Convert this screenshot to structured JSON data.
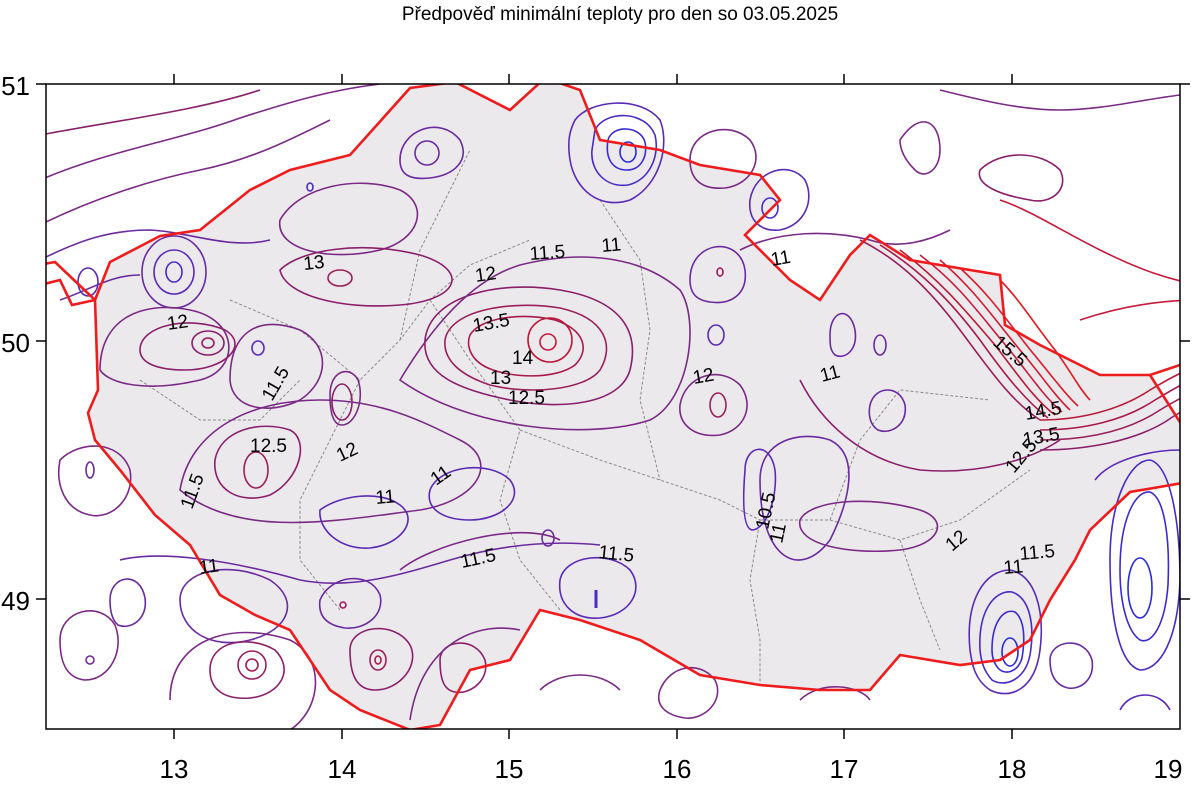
{
  "title": "Předpověď minimální teploty pro den so 03.05.2025",
  "x_axis": {
    "ticks": [
      "13",
      "14",
      "15",
      "16",
      "17",
      "18",
      "19"
    ]
  },
  "y_axis": {
    "ticks": [
      "51",
      "50",
      "49"
    ]
  },
  "contour_labels": [
    "11.5",
    "11",
    "12",
    "13",
    "13.5",
    "14",
    "13",
    "12.5",
    "12",
    "11.5",
    "12.5",
    "12",
    "11",
    "11",
    "11.5",
    "11.5",
    "11.5",
    "11",
    "11",
    "12",
    "11",
    "10.5",
    "11",
    "12",
    "11",
    "11.5",
    "12.5",
    "13.5",
    "14.5",
    "15.5"
  ],
  "colors": {
    "border": "#ee1c1c",
    "country_fill": "#ece9ec",
    "contour_low": "#2b2bd6",
    "contour_mid": "#6a1f9a",
    "contour_high": "#c51a3a",
    "region_border": "#8a8a8a"
  }
}
